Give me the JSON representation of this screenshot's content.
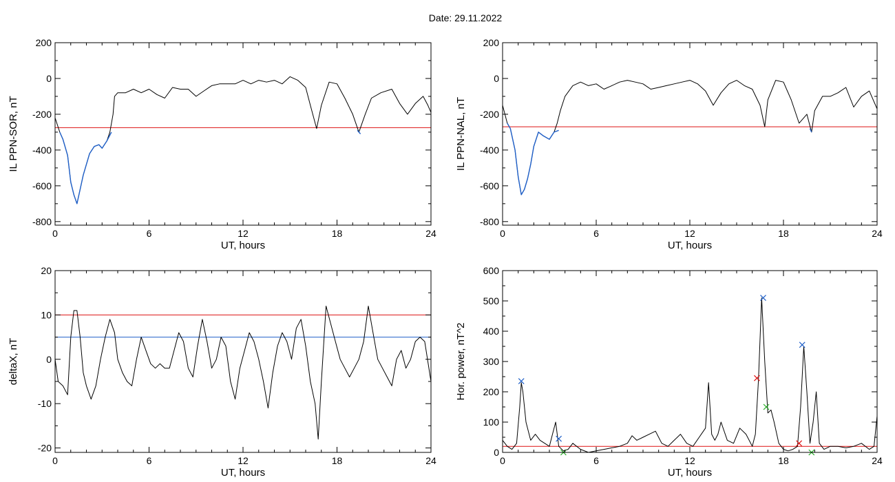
{
  "header": {
    "title": "Date:  29.11.2022"
  },
  "colors": {
    "black": "#000000",
    "red": "#dd1111",
    "blue": "#1e5fc8",
    "green": "#22aa22"
  },
  "chart_data": [
    {
      "type": "line",
      "xlabel": "UT, hours",
      "ylabel": "IL PPN-SOR, nT",
      "xlim": [
        0,
        24
      ],
      "ylim": [
        -820,
        200
      ],
      "xticks": [
        0,
        6,
        12,
        18,
        24
      ],
      "yticks": [
        -800,
        -600,
        -400,
        -200,
        0,
        200
      ],
      "grid": false,
      "threshold_lines": [
        {
          "y": -275,
          "color": "red"
        }
      ],
      "series": [
        {
          "color": "black",
          "x": [
            0,
            0.3,
            0.5,
            0.8,
            1.0,
            1.2,
            1.4,
            1.6,
            1.8,
            2.0,
            2.2,
            2.5,
            2.8,
            3.0,
            3.3,
            3.5,
            3.7,
            3.8,
            4.0,
            4.5,
            5.0,
            5.5,
            6.0,
            6.5,
            7.0,
            7.5,
            8.0,
            8.5,
            9.0,
            9.5,
            10.0,
            10.5,
            11.0,
            11.5,
            12.0,
            12.5,
            13.0,
            13.5,
            14.0,
            14.5,
            15.0,
            15.5,
            16.0,
            16.3,
            16.7,
            17.0,
            17.5,
            18.0,
            18.5,
            19.0,
            19.4,
            19.8,
            20.2,
            20.8,
            21.5,
            22.0,
            22.5,
            23.0,
            23.5,
            23.8,
            24.0
          ],
          "y": [
            -220,
            -300,
            -340,
            -430,
            -580,
            -650,
            -700,
            -620,
            -540,
            -480,
            -420,
            -380,
            -370,
            -390,
            -350,
            -300,
            -200,
            -100,
            -80,
            -80,
            -60,
            -80,
            -60,
            -90,
            -110,
            -50,
            -60,
            -60,
            -100,
            -70,
            -40,
            -30,
            -30,
            -30,
            -10,
            -30,
            -10,
            -20,
            -10,
            -30,
            10,
            -10,
            -50,
            -150,
            -280,
            -150,
            -20,
            -30,
            -110,
            -200,
            -300,
            -200,
            -110,
            -80,
            -60,
            -140,
            -200,
            -140,
            -100,
            -150,
            -190
          ]
        },
        {
          "color": "blue",
          "x": [
            0.3,
            0.5,
            0.8,
            1.0,
            1.2,
            1.4,
            1.6,
            1.8,
            2.0,
            2.2,
            2.5,
            2.8,
            3.0,
            3.3,
            3.6
          ],
          "y": [
            -300,
            -340,
            -430,
            -580,
            -650,
            -700,
            -620,
            -540,
            -480,
            -420,
            -380,
            -370,
            -390,
            -350,
            -300
          ]
        },
        {
          "color": "blue",
          "x": [
            19.3,
            19.5
          ],
          "y": [
            -290,
            -310
          ]
        }
      ]
    },
    {
      "type": "line",
      "xlabel": "UT, hours",
      "ylabel": "IL PPN-NAL, nT",
      "xlim": [
        0,
        24
      ],
      "ylim": [
        -820,
        200
      ],
      "xticks": [
        0,
        6,
        12,
        18,
        24
      ],
      "yticks": [
        -800,
        -600,
        -400,
        -200,
        0,
        200
      ],
      "grid": false,
      "threshold_lines": [
        {
          "y": -270,
          "color": "red"
        }
      ],
      "series": [
        {
          "color": "black",
          "x": [
            0,
            0.3,
            0.5,
            0.8,
            1.0,
            1.2,
            1.4,
            1.6,
            1.8,
            2.0,
            2.3,
            2.6,
            3.0,
            3.3,
            3.5,
            3.7,
            4.0,
            4.5,
            5.0,
            5.5,
            6.0,
            6.5,
            7.0,
            7.5,
            8.0,
            8.5,
            9.0,
            9.5,
            10.0,
            10.5,
            11.0,
            11.5,
            12.0,
            12.5,
            13.0,
            13.5,
            14.0,
            14.5,
            15.0,
            15.5,
            16.0,
            16.5,
            16.8,
            17.0,
            17.5,
            18.0,
            18.5,
            19.0,
            19.5,
            19.8,
            20.0,
            20.5,
            21.0,
            21.5,
            22.0,
            22.5,
            23.0,
            23.5,
            24.0
          ],
          "y": [
            -150,
            -250,
            -280,
            -400,
            -550,
            -650,
            -620,
            -560,
            -480,
            -380,
            -300,
            -320,
            -340,
            -300,
            -250,
            -180,
            -100,
            -40,
            -20,
            -40,
            -30,
            -60,
            -40,
            -20,
            -10,
            -20,
            -30,
            -60,
            -50,
            -40,
            -30,
            -20,
            -10,
            -30,
            -70,
            -150,
            -80,
            -30,
            -10,
            -40,
            -60,
            -150,
            -270,
            -120,
            -10,
            -20,
            -120,
            -250,
            -200,
            -300,
            -180,
            -100,
            -100,
            -80,
            -50,
            -160,
            -100,
            -70,
            -170
          ]
        },
        {
          "color": "blue",
          "x": [
            0.3,
            0.5,
            0.8,
            1.0,
            1.2,
            1.4,
            1.6,
            1.8,
            2.0,
            2.3,
            2.6,
            3.0,
            3.3,
            3.6
          ],
          "y": [
            -250,
            -280,
            -400,
            -550,
            -650,
            -620,
            -560,
            -480,
            -380,
            -300,
            -320,
            -340,
            -300,
            -290
          ]
        },
        {
          "color": "blue",
          "x": [
            19.7,
            19.8
          ],
          "y": [
            -280,
            -300
          ]
        }
      ]
    },
    {
      "type": "line",
      "xlabel": "UT, hours",
      "ylabel": "deltaX, nT",
      "xlim": [
        0,
        24
      ],
      "ylim": [
        -21,
        20
      ],
      "xticks": [
        0,
        6,
        12,
        18,
        24
      ],
      "yticks": [
        -20,
        -10,
        0,
        10,
        20
      ],
      "grid": false,
      "threshold_lines": [
        {
          "y": 10,
          "color": "red"
        },
        {
          "y": 5,
          "color": "blue"
        }
      ],
      "series": [
        {
          "color": "black",
          "x": [
            0,
            0.2,
            0.5,
            0.8,
            1.0,
            1.2,
            1.4,
            1.6,
            1.8,
            2.0,
            2.3,
            2.6,
            2.9,
            3.2,
            3.5,
            3.8,
            4.0,
            4.3,
            4.6,
            4.9,
            5.2,
            5.5,
            5.8,
            6.1,
            6.4,
            6.7,
            7.0,
            7.3,
            7.6,
            7.9,
            8.2,
            8.5,
            8.8,
            9.1,
            9.4,
            9.7,
            10.0,
            10.3,
            10.6,
            10.9,
            11.2,
            11.5,
            11.8,
            12.1,
            12.4,
            12.7,
            13.0,
            13.3,
            13.6,
            13.9,
            14.2,
            14.5,
            14.8,
            15.1,
            15.4,
            15.7,
            16.0,
            16.3,
            16.6,
            16.8,
            17.0,
            17.3,
            17.6,
            17.9,
            18.2,
            18.5,
            18.8,
            19.1,
            19.4,
            19.7,
            20.0,
            20.3,
            20.6,
            20.9,
            21.2,
            21.5,
            21.8,
            22.1,
            22.4,
            22.7,
            23.0,
            23.3,
            23.6,
            24.0
          ],
          "y": [
            0,
            -5,
            -6,
            -8,
            5,
            11,
            11,
            5,
            -3,
            -6,
            -9,
            -6,
            0,
            5,
            9,
            6,
            0,
            -3,
            -5,
            -6,
            0,
            5,
            2,
            -1,
            -2,
            -1,
            -2,
            -2,
            2,
            6,
            4,
            -2,
            -4,
            3,
            9,
            4,
            -2,
            0,
            5,
            3,
            -5,
            -9,
            -2,
            2,
            6,
            4,
            0,
            -5,
            -11,
            -3,
            3,
            6,
            4,
            0,
            7,
            9,
            3,
            -5,
            -10,
            -18,
            -5,
            12,
            8,
            4,
            0,
            -2,
            -4,
            -2,
            0,
            4,
            12,
            6,
            0,
            -2,
            -4,
            -6,
            0,
            2,
            -2,
            0,
            4,
            5,
            4,
            -5
          ]
        }
      ]
    },
    {
      "type": "line",
      "xlabel": "UT, hours",
      "ylabel": "Hor. power, nT^2",
      "xlim": [
        0,
        24
      ],
      "ylim": [
        0,
        600
      ],
      "xticks": [
        0,
        6,
        12,
        18,
        24
      ],
      "yticks": [
        0,
        100,
        200,
        300,
        400,
        500,
        600
      ],
      "grid": false,
      "threshold_lines": [
        {
          "y": 20,
          "color": "red"
        }
      ],
      "series": [
        {
          "color": "black",
          "x": [
            0,
            0.3,
            0.6,
            0.9,
            1.1,
            1.2,
            1.3,
            1.5,
            1.8,
            2.1,
            2.4,
            2.7,
            3.0,
            3.2,
            3.4,
            3.6,
            3.9,
            4.2,
            4.5,
            5.0,
            5.5,
            6.0,
            6.5,
            7.0,
            7.5,
            8.0,
            8.3,
            8.6,
            9.0,
            9.4,
            9.8,
            10.2,
            10.6,
            11.0,
            11.4,
            11.8,
            12.2,
            12.6,
            13.0,
            13.2,
            13.4,
            13.6,
            13.8,
            14.0,
            14.4,
            14.8,
            15.2,
            15.6,
            16.0,
            16.2,
            16.4,
            16.6,
            16.8,
            17.0,
            17.2,
            17.4,
            17.7,
            18.0,
            18.3,
            18.6,
            18.9,
            19.1,
            19.3,
            19.5,
            19.7,
            19.9,
            20.1,
            20.3,
            20.6,
            21.0,
            21.5,
            22.0,
            22.5,
            23.0,
            23.5,
            23.8,
            24.0
          ],
          "y": [
            40,
            20,
            10,
            30,
            150,
            230,
            200,
            100,
            40,
            60,
            40,
            30,
            20,
            60,
            100,
            20,
            5,
            10,
            30,
            10,
            0,
            5,
            10,
            15,
            20,
            30,
            55,
            40,
            50,
            60,
            70,
            30,
            20,
            40,
            60,
            30,
            20,
            50,
            80,
            230,
            60,
            40,
            60,
            100,
            40,
            30,
            80,
            60,
            20,
            60,
            240,
            510,
            300,
            130,
            140,
            100,
            30,
            10,
            5,
            10,
            20,
            150,
            350,
            200,
            30,
            100,
            200,
            30,
            10,
            20,
            20,
            15,
            20,
            30,
            10,
            20,
            120
          ]
        }
      ],
      "markers": [
        {
          "x": 1.2,
          "y": 235,
          "color": "blue"
        },
        {
          "x": 3.6,
          "y": 45,
          "color": "blue"
        },
        {
          "x": 3.9,
          "y": 0,
          "color": "green"
        },
        {
          "x": 16.3,
          "y": 245,
          "color": "red"
        },
        {
          "x": 16.7,
          "y": 510,
          "color": "blue"
        },
        {
          "x": 16.9,
          "y": 150,
          "color": "green"
        },
        {
          "x": 19.0,
          "y": 30,
          "color": "red"
        },
        {
          "x": 19.2,
          "y": 355,
          "color": "blue"
        },
        {
          "x": 19.8,
          "y": 0,
          "color": "green"
        }
      ]
    }
  ]
}
